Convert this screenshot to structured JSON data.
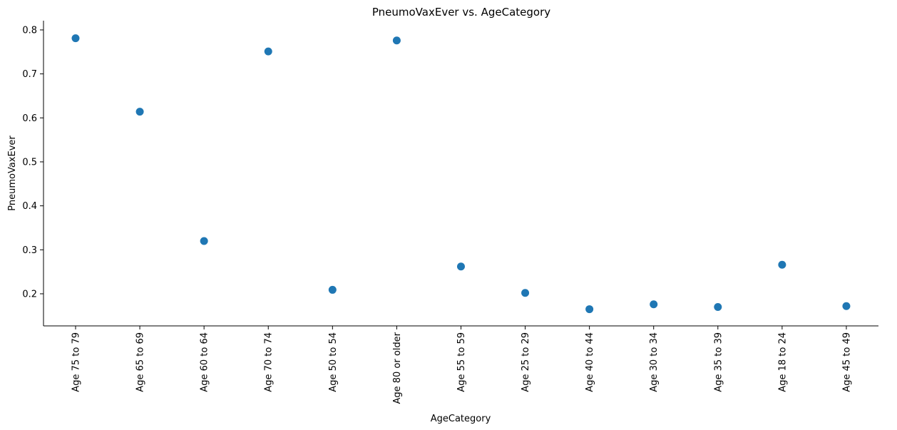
{
  "chart_data": {
    "type": "scatter",
    "title": "PneumoVaxEver vs. AgeCategory",
    "xlabel": "AgeCategory",
    "ylabel": "PneumoVaxEver",
    "categories": [
      "Age 75 to 79",
      "Age 65 to 69",
      "Age 60 to 64",
      "Age 70 to 74",
      "Age 50 to 54",
      "Age 80 or older",
      "Age 55 to 59",
      "Age 25 to 29",
      "Age 40 to 44",
      "Age 30 to 34",
      "Age 35 to 39",
      "Age 18 to 24",
      "Age 45 to 49"
    ],
    "values": [
      0.781,
      0.614,
      0.32,
      0.751,
      0.209,
      0.776,
      0.262,
      0.202,
      0.165,
      0.176,
      0.17,
      0.266,
      0.172
    ],
    "error_halfwidth": [
      0.004,
      0.004,
      0.004,
      0.003,
      0.003,
      0.004,
      0.004,
      0.006,
      0.003,
      0.003,
      0.003,
      0.007,
      0.003
    ],
    "ylim": [
      0.127,
      0.821
    ],
    "yticks": [
      0.2,
      0.3,
      0.4,
      0.5,
      0.6,
      0.7,
      0.8
    ],
    "ytick_labels": [
      "0.2",
      "0.3",
      "0.4",
      "0.5",
      "0.6",
      "0.7",
      "0.8"
    ],
    "grid": false,
    "marker_color": "#1f77b4"
  }
}
